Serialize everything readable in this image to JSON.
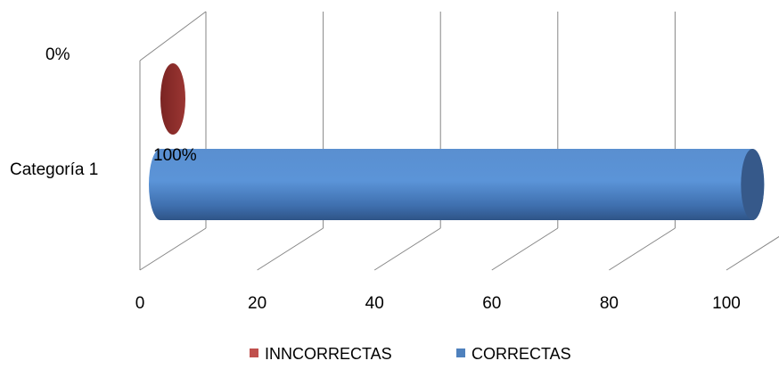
{
  "chart_data": {
    "type": "bar",
    "orientation": "horizontal",
    "style": "3d-cylinder",
    "categories": [
      "Categoría 1"
    ],
    "series": [
      {
        "name": "INNCORRECTAS",
        "values": [
          0
        ],
        "data_label": "0%",
        "color": "#c0504d"
      },
      {
        "name": "CORRECTAS",
        "values": [
          100
        ],
        "data_label": "100%",
        "color": "#4f81bd"
      }
    ],
    "x_ticks": [
      "0",
      "20",
      "40",
      "60",
      "80",
      "100"
    ],
    "xlim": [
      0,
      100
    ],
    "grid": true,
    "legend_position": "bottom"
  }
}
